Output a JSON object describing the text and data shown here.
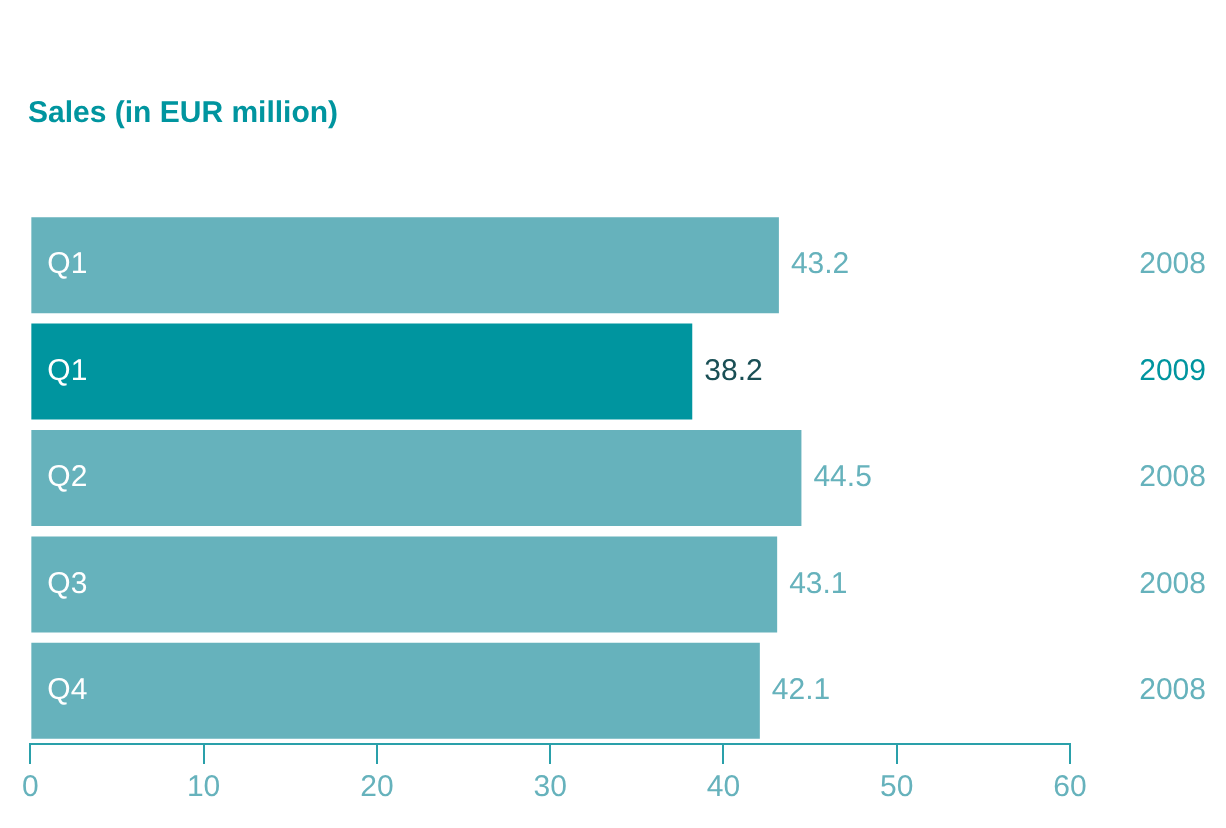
{
  "chart_data": {
    "type": "bar",
    "orientation": "horizontal",
    "stacked": true,
    "title": "Sales (in EUR million)",
    "categories": [
      "Q1",
      "Q1",
      "Q2",
      "Q3",
      "Q4"
    ],
    "series": [
      {
        "name": "2008",
        "color": "#66b2bc",
        "values": [
          43.2,
          null,
          44.5,
          43.1,
          42.1
        ]
      },
      {
        "name": "2009",
        "color": "#00959f",
        "values": [
          null,
          38.2,
          null,
          null,
          null
        ]
      }
    ],
    "xlim": [
      0,
      60
    ],
    "xticks": [
      0,
      10,
      20,
      30,
      40,
      50,
      60
    ],
    "grid": false,
    "legend": false,
    "data_labels": true
  }
}
